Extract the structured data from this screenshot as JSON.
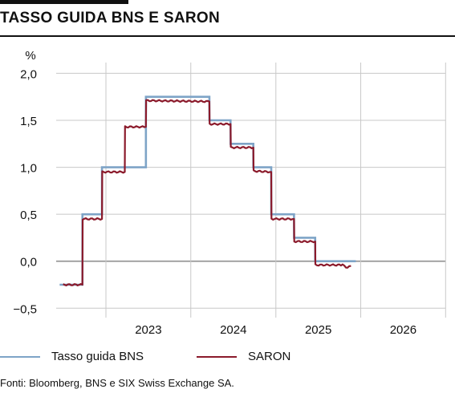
{
  "title": "TASSO GUIDA BNS E SARON",
  "source": "Fonti: Bloomberg, BNS e SIX Swiss Exchange SA.",
  "colors": {
    "policy": "#7ea4c7",
    "saron": "#8b1a2b",
    "grid": "#c8c8c8",
    "zero": "#909090"
  },
  "chart_data": {
    "type": "line",
    "title": "TASSO GUIDA BNS E SARON",
    "ylabel": "%",
    "xlabel": "",
    "ylim": [
      -0.6,
      2.2
    ],
    "yticks": [
      2.0,
      1.5,
      1.0,
      0.5,
      0.0,
      -0.5
    ],
    "ytick_labels": [
      "2,0",
      "1,5",
      "1,0",
      "0,5",
      "0,0",
      "−0,5"
    ],
    "xlim": [
      "2022-06-01",
      "2026-12-31"
    ],
    "xticks": [
      "2023",
      "2024",
      "2025",
      "2026"
    ],
    "grid": true,
    "legend_position": "bottom",
    "series": [
      {
        "name": "Tasso guida BNS",
        "step": true,
        "x": [
          "2022-06-16",
          "2022-09-22",
          "2022-12-15",
          "2023-06-22",
          "2023-09-21",
          "2024-03-21",
          "2024-06-20",
          "2024-09-26",
          "2024-12-12",
          "2025-03-20",
          "2025-06-19",
          "2025-09-25",
          "2025-12-11"
        ],
        "y": [
          -0.25,
          0.5,
          1.0,
          1.75,
          1.75,
          1.5,
          1.25,
          1.0,
          0.5,
          0.25,
          0.0,
          0.0,
          0.0
        ]
      },
      {
        "name": "SARON",
        "x": [
          "2022-07-01",
          "2022-09-22",
          "2022-09-23",
          "2022-12-15",
          "2022-12-16",
          "2023-03-23",
          "2023-03-24",
          "2023-06-22",
          "2023-06-23",
          "2024-03-21",
          "2024-03-22",
          "2024-06-20",
          "2024-06-21",
          "2024-09-26",
          "2024-09-27",
          "2024-12-12",
          "2024-12-13",
          "2025-03-20",
          "2025-03-21",
          "2025-06-19",
          "2025-06-20",
          "2025-10-15",
          "2025-11-05",
          "2025-11-20"
        ],
        "y": [
          -0.25,
          -0.25,
          0.45,
          0.45,
          0.95,
          0.95,
          1.43,
          1.43,
          1.71,
          1.7,
          1.46,
          1.46,
          1.21,
          1.21,
          0.96,
          0.95,
          0.45,
          0.45,
          0.21,
          0.21,
          -0.04,
          -0.04,
          -0.07,
          -0.05
        ]
      }
    ]
  }
}
